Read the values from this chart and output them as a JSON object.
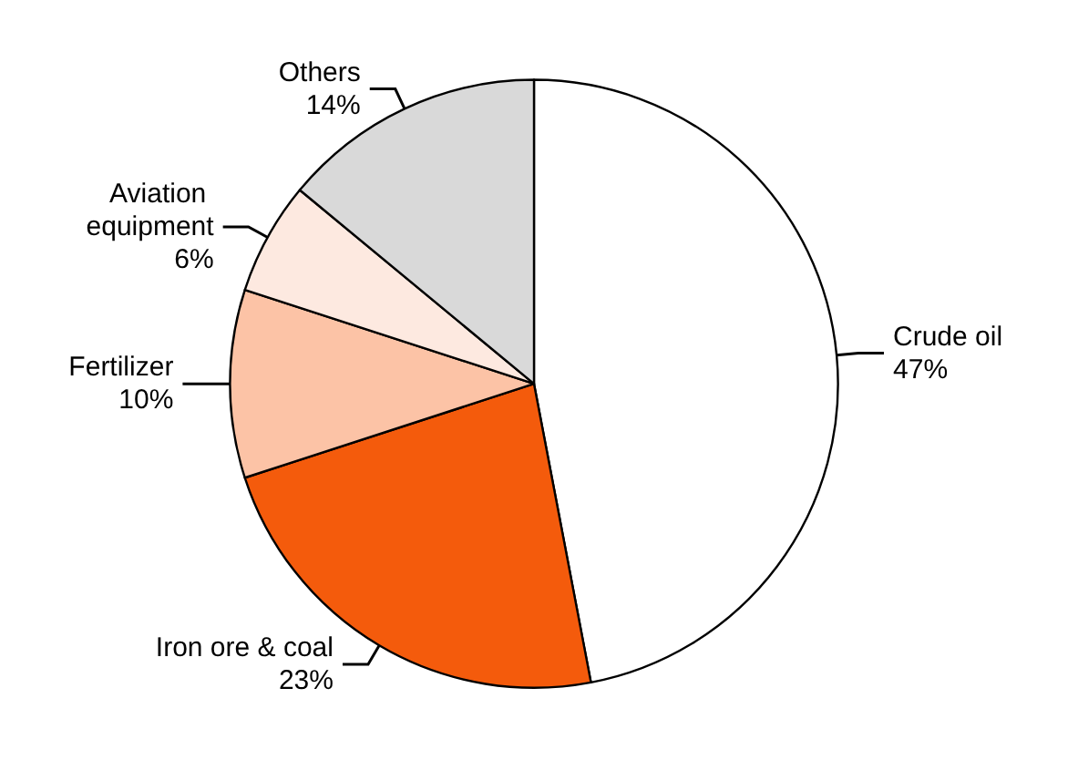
{
  "chart_data": {
    "type": "pie",
    "categories": [
      "Crude oil",
      "Iron ore & coal",
      "Fertilizer",
      "Aviation equipment",
      "Others"
    ],
    "values": [
      47,
      23,
      10,
      6,
      14
    ],
    "value_labels": [
      "47%",
      "23%",
      "10%",
      "6%",
      "14%"
    ],
    "colors": [
      "#ffffff",
      "#f45b0c",
      "#fcc3a6",
      "#fde9e0",
      "#d9d9d9"
    ],
    "legend": false
  }
}
